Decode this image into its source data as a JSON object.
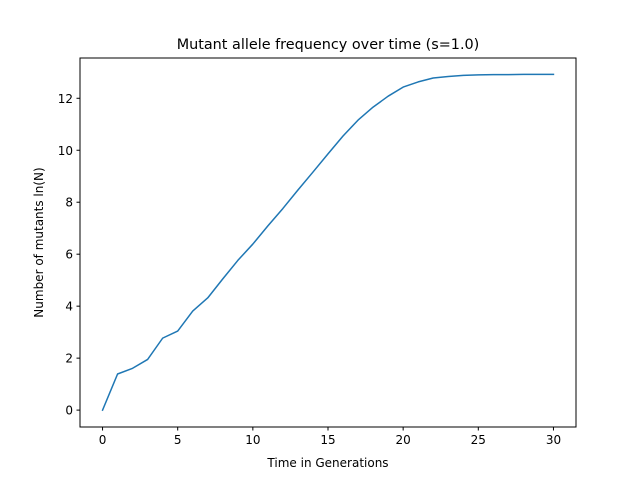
{
  "chart_data": {
    "type": "line",
    "title": "Mutant allele frequency over time (s=1.0)",
    "xlabel": "Time in Generations",
    "ylabel": "Number of mutants ln(N)",
    "xlim": [
      -1.5,
      31.5
    ],
    "ylim": [
      -0.65,
      13.55
    ],
    "xticks": [
      0,
      5,
      10,
      15,
      20,
      25,
      30
    ],
    "yticks": [
      0,
      2,
      4,
      6,
      8,
      10,
      12
    ],
    "grid": false,
    "legend": "none",
    "series": [
      {
        "color": "#1f77b4",
        "x": [
          0,
          1,
          2,
          3,
          4,
          5,
          6,
          7,
          8,
          9,
          10,
          11,
          12,
          13,
          14,
          15,
          16,
          17,
          18,
          19,
          20,
          21,
          22,
          23,
          24,
          25,
          26,
          27,
          28,
          29,
          30
        ],
        "y": [
          0.0,
          1.39,
          1.61,
          1.95,
          2.77,
          3.04,
          3.81,
          4.32,
          5.05,
          5.76,
          6.39,
          7.09,
          7.76,
          8.47,
          9.16,
          9.86,
          10.55,
          11.16,
          11.66,
          12.08,
          12.43,
          12.63,
          12.78,
          12.84,
          12.88,
          12.9,
          12.91,
          12.91,
          12.92,
          12.92,
          12.92
        ]
      }
    ]
  }
}
